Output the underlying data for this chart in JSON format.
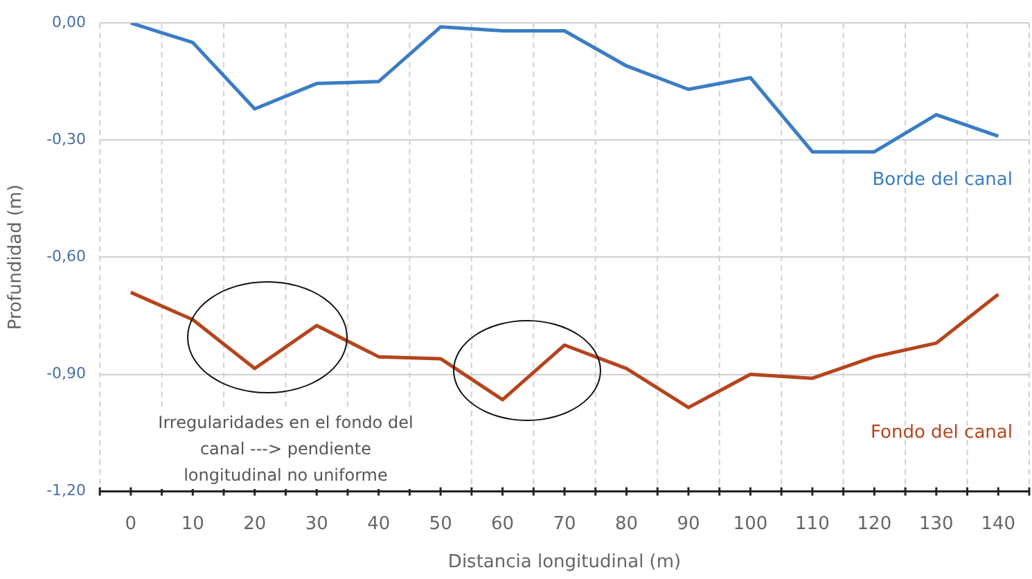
{
  "chart_data": {
    "type": "line",
    "xlabel": "Distancia longitudinal (m)",
    "ylabel": "Profundidad (m)",
    "x": [
      0,
      10,
      20,
      30,
      40,
      50,
      60,
      70,
      80,
      90,
      100,
      110,
      120,
      130,
      140
    ],
    "series": [
      {
        "name": "Borde del canal",
        "color": "#3a7dc4",
        "values": [
          0,
          -0.05,
          -0.22,
          -0.155,
          -0.15,
          -0.01,
          -0.02,
          -0.02,
          -0.11,
          -0.17,
          -0.14,
          -0.33,
          -0.33,
          -0.235,
          -0.29
        ]
      },
      {
        "name": "Fondo del canal",
        "color": "#b5441c",
        "values": [
          -0.69,
          -0.76,
          -0.885,
          -0.775,
          -0.855,
          -0.86,
          -0.965,
          -0.825,
          -0.885,
          -0.985,
          -0.9,
          -0.91,
          -0.855,
          -0.82,
          -0.695
        ]
      }
    ],
    "xlim": [
      -5,
      145
    ],
    "xticks": [
      0,
      10,
      20,
      30,
      40,
      50,
      60,
      70,
      80,
      90,
      100,
      110,
      120,
      130,
      140
    ],
    "ylim": [
      -1.2,
      0
    ],
    "yticks": [
      {
        "value": 0,
        "label": "0,00"
      },
      {
        "value": -0.3,
        "label": "-0,30"
      },
      {
        "value": -0.6,
        "label": "-0,60"
      },
      {
        "value": -0.9,
        "label": "-0,90"
      },
      {
        "value": -1.2,
        "label": "-1,20"
      }
    ],
    "annotations": [
      "Irregularidades en el fondo del canal ---> pendiente longitudinal no uniforme"
    ],
    "grid": true,
    "legend": false,
    "marker": "none",
    "line_style": "solid"
  }
}
